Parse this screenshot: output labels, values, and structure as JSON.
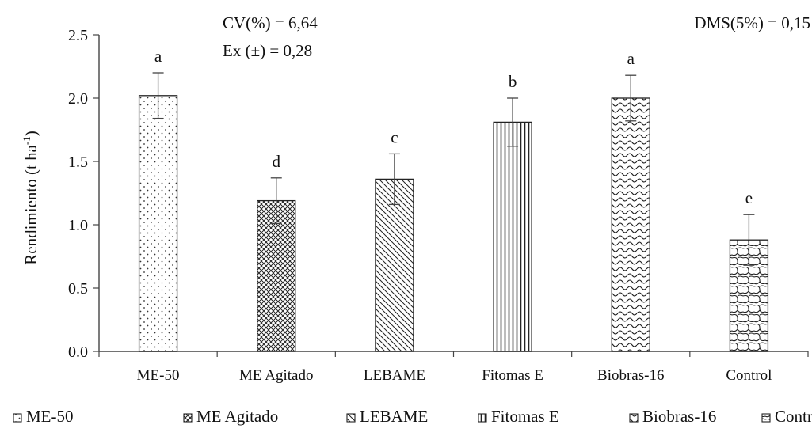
{
  "chart_data": {
    "type": "bar",
    "categories": [
      "ME-50",
      "ME Agitado",
      "LEBAME",
      "Fitomas E",
      "Biobras-16",
      "Control"
    ],
    "values": [
      2.02,
      1.19,
      1.36,
      1.81,
      2.0,
      0.88
    ],
    "errors": [
      0.18,
      0.18,
      0.2,
      0.19,
      0.18,
      0.2
    ],
    "significance_letters": [
      "a",
      "d",
      "c",
      "b",
      "a",
      "e"
    ],
    "patterns": [
      "dots",
      "crosshatch",
      "diagonal",
      "vertical",
      "wave",
      "scale"
    ],
    "ylabel": "Rendimiento (t ha",
    "ylabel_superscript": "-1",
    "ylabel_close": ")",
    "ylim": [
      0,
      2.5
    ],
    "yticks": [
      "0.0",
      "0.5",
      "1.0",
      "1.5",
      "2.0",
      "2.5"
    ],
    "grid": false,
    "legend_position": "bottom",
    "annotations": {
      "cv": "CV(%) = 6,64",
      "ex": "Ex (±) = 0,28",
      "dms": "DMS(5%) = 0,15"
    }
  }
}
